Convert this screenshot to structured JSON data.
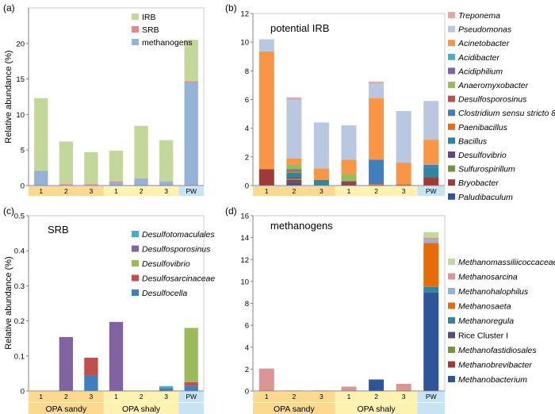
{
  "figure": {
    "ylabel": "Relative abundance (%)",
    "group_sandy": "OPA sandy",
    "group_shaly": "OPA shaly"
  },
  "chart_data": [
    {
      "panel": "(a)",
      "type": "bar",
      "stacked": true,
      "title": "",
      "ylabel": "Relative abundance (%)",
      "ylim": [
        0,
        25
      ],
      "yticks": [
        0,
        5,
        10,
        15,
        20
      ],
      "categories": [
        "1",
        "2",
        "3",
        "1",
        "2",
        "3",
        "PW"
      ],
      "legend_position": "top-right",
      "series": [
        {
          "name": "methanogens",
          "color": "#95b3d7",
          "values": [
            2.1,
            0.1,
            0.1,
            0.4,
            1.0,
            0.6,
            14.5
          ]
        },
        {
          "name": "SRB",
          "color": "#e6898a",
          "values": [
            0.0,
            0.1,
            0.1,
            0.2,
            0.0,
            0.0,
            0.2
          ]
        },
        {
          "name": "IRB",
          "color": "#c4d79b",
          "values": [
            10.2,
            6.0,
            4.5,
            4.3,
            7.4,
            5.8,
            5.8
          ]
        }
      ]
    },
    {
      "panel": "(b)",
      "type": "bar",
      "stacked": true,
      "title": "potential IRB",
      "ylabel": "",
      "ylim": [
        0,
        12
      ],
      "yticks": [
        0,
        2,
        4,
        6,
        8,
        10,
        12
      ],
      "categories": [
        "1",
        "2",
        "3",
        "1",
        "2",
        "3",
        "PW"
      ],
      "legend_position": "right",
      "series": [
        {
          "name": "Paludibaculum",
          "color": "#2e5597",
          "values": [
            0.0,
            0.2,
            0.0,
            0.0,
            0.0,
            0.0,
            0.0
          ]
        },
        {
          "name": "Bryobacter",
          "color": "#9e3a38",
          "values": [
            1.15,
            0.2,
            0.0,
            0.2,
            0.0,
            0.0,
            0.55
          ]
        },
        {
          "name": "Sulfurospirillum",
          "color": "#77933c",
          "values": [
            0.0,
            0.1,
            0.0,
            0.0,
            0.0,
            0.0,
            0.0
          ]
        },
        {
          "name": "Desulfovibrio",
          "color": "#604a7b",
          "values": [
            0.0,
            0.1,
            0.0,
            0.1,
            0.0,
            0.0,
            0.05
          ]
        },
        {
          "name": "Bacillus",
          "color": "#31859c",
          "values": [
            0.0,
            0.3,
            0.4,
            0.0,
            0.0,
            0.0,
            0.65
          ]
        },
        {
          "name": "Paenibacillus",
          "color": "#e46c0a",
          "values": [
            0.0,
            0.1,
            0.0,
            0.0,
            0.1,
            0.1,
            0.0
          ]
        },
        {
          "name": "Clostridium sensu stricto 8",
          "color": "#3f7fbf",
          "values": [
            0.0,
            0.1,
            0.0,
            0.0,
            1.7,
            0.0,
            0.2
          ]
        },
        {
          "name": "Desulfosporosinus",
          "color": "#c0504d",
          "values": [
            0.0,
            0.05,
            0.0,
            0.0,
            0.0,
            0.0,
            0.0
          ]
        },
        {
          "name": "Anaeromyxobacter",
          "color": "#9bbb59",
          "values": [
            0.0,
            0.35,
            0.0,
            0.5,
            0.0,
            0.0,
            0.0
          ]
        },
        {
          "name": "Acidiphilium",
          "color": "#8064a2",
          "values": [
            0.0,
            0.0,
            0.0,
            0.0,
            0.0,
            0.0,
            0.0
          ]
        },
        {
          "name": "Acidibacter",
          "color": "#4bacc6",
          "values": [
            0.0,
            0.0,
            0.0,
            0.0,
            0.0,
            0.0,
            0.0
          ]
        },
        {
          "name": "Acinetobacter",
          "color": "#f79646",
          "values": [
            8.2,
            0.4,
            0.8,
            1.0,
            4.3,
            1.5,
            1.75
          ]
        },
        {
          "name": "Pseudomonas",
          "color": "#b9c7e0",
          "values": [
            0.85,
            4.1,
            3.2,
            2.4,
            1.0,
            3.6,
            2.7
          ]
        },
        {
          "name": "Treponema",
          "color": "#e6a6a5",
          "values": [
            0.0,
            0.15,
            0.0,
            0.0,
            0.15,
            0.0,
            0.0
          ]
        }
      ]
    },
    {
      "panel": "(c)",
      "type": "bar",
      "stacked": true,
      "title": "SRB",
      "ylabel": "Relative abundance (%)",
      "ylim": [
        0,
        0.5
      ],
      "yticks": [
        0,
        0.1,
        0.2,
        0.3,
        0.4,
        0.5
      ],
      "ytick_labels": [
        "0",
        "0.1",
        "0.2",
        "0.3",
        "0.4",
        "0.5"
      ],
      "categories": [
        "1",
        "2",
        "3",
        "1",
        "2",
        "3",
        "PW"
      ],
      "legend_position": "top-right",
      "series": [
        {
          "name": "Desulfocella",
          "color": "#3f7fbf",
          "values": [
            0.0,
            0.0,
            0.044,
            0.0,
            0.0,
            0.008,
            0.015
          ]
        },
        {
          "name": "Desulfosarcinaceae",
          "color": "#c0504d",
          "values": [
            0.0,
            0.0,
            0.051,
            0.0,
            0.0,
            0.0,
            0.01
          ]
        },
        {
          "name": "Desulfovibrio",
          "color": "#9bbb59",
          "values": [
            0.0,
            0.0,
            0.0,
            0.0,
            0.0,
            0.0,
            0.155
          ]
        },
        {
          "name": "Desulfosporosinus",
          "color": "#8064a2",
          "values": [
            0.0,
            0.154,
            0.0,
            0.197,
            0.0,
            0.0,
            0.0
          ]
        },
        {
          "name": "Desulfotomaculales",
          "color": "#4bacc6",
          "values": [
            0.0,
            0.0,
            0.0,
            0.0,
            0.0,
            0.006,
            0.0
          ]
        }
      ]
    },
    {
      "panel": "(d)",
      "type": "bar",
      "stacked": true,
      "title": "methanogens",
      "ylabel": "",
      "ylim": [
        0,
        16
      ],
      "yticks": [
        0,
        2,
        4,
        6,
        8,
        10,
        12,
        14,
        16
      ],
      "categories": [
        "1",
        "2",
        "3",
        "1",
        "2",
        "3",
        "PW"
      ],
      "legend_position": "right",
      "series": [
        {
          "name": "Methanobacterium",
          "color": "#2e5597",
          "values": [
            0.0,
            0.0,
            0.0,
            0.0,
            1.05,
            0.0,
            9.0
          ]
        },
        {
          "name": "Methanobrevibacter",
          "color": "#9e3a38",
          "values": [
            0.0,
            0.0,
            0.0,
            0.0,
            0.0,
            0.0,
            0.0
          ]
        },
        {
          "name": "Methanofastidiosales",
          "color": "#77933c",
          "values": [
            0.0,
            0.0,
            0.0,
            0.0,
            0.0,
            0.0,
            0.0
          ]
        },
        {
          "name": "Rice Cluster I",
          "color": "#604a7b",
          "values": [
            0.0,
            0.0,
            0.0,
            0.0,
            0.0,
            0.0,
            0.0
          ]
        },
        {
          "name": "Methanoregula",
          "color": "#31859c",
          "values": [
            0.0,
            0.0,
            0.0,
            0.0,
            0.0,
            0.0,
            0.5
          ]
        },
        {
          "name": "Methanosaeta",
          "color": "#e46c0a",
          "values": [
            0.0,
            0.0,
            0.0,
            0.0,
            0.0,
            0.0,
            4.0
          ]
        },
        {
          "name": "Methanohalophilus",
          "color": "#95b3d7",
          "values": [
            0.0,
            0.0,
            0.0,
            0.0,
            0.0,
            0.0,
            0.3
          ]
        },
        {
          "name": "Methanosarcina",
          "color": "#d99694",
          "values": [
            2.05,
            0.05,
            0.05,
            0.4,
            0.0,
            0.65,
            0.2
          ]
        },
        {
          "name": "Methanomassiliicoccaceae",
          "color": "#c4d79b",
          "values": [
            0.0,
            0.0,
            0.0,
            0.0,
            0.0,
            0.0,
            0.5
          ]
        }
      ]
    }
  ]
}
